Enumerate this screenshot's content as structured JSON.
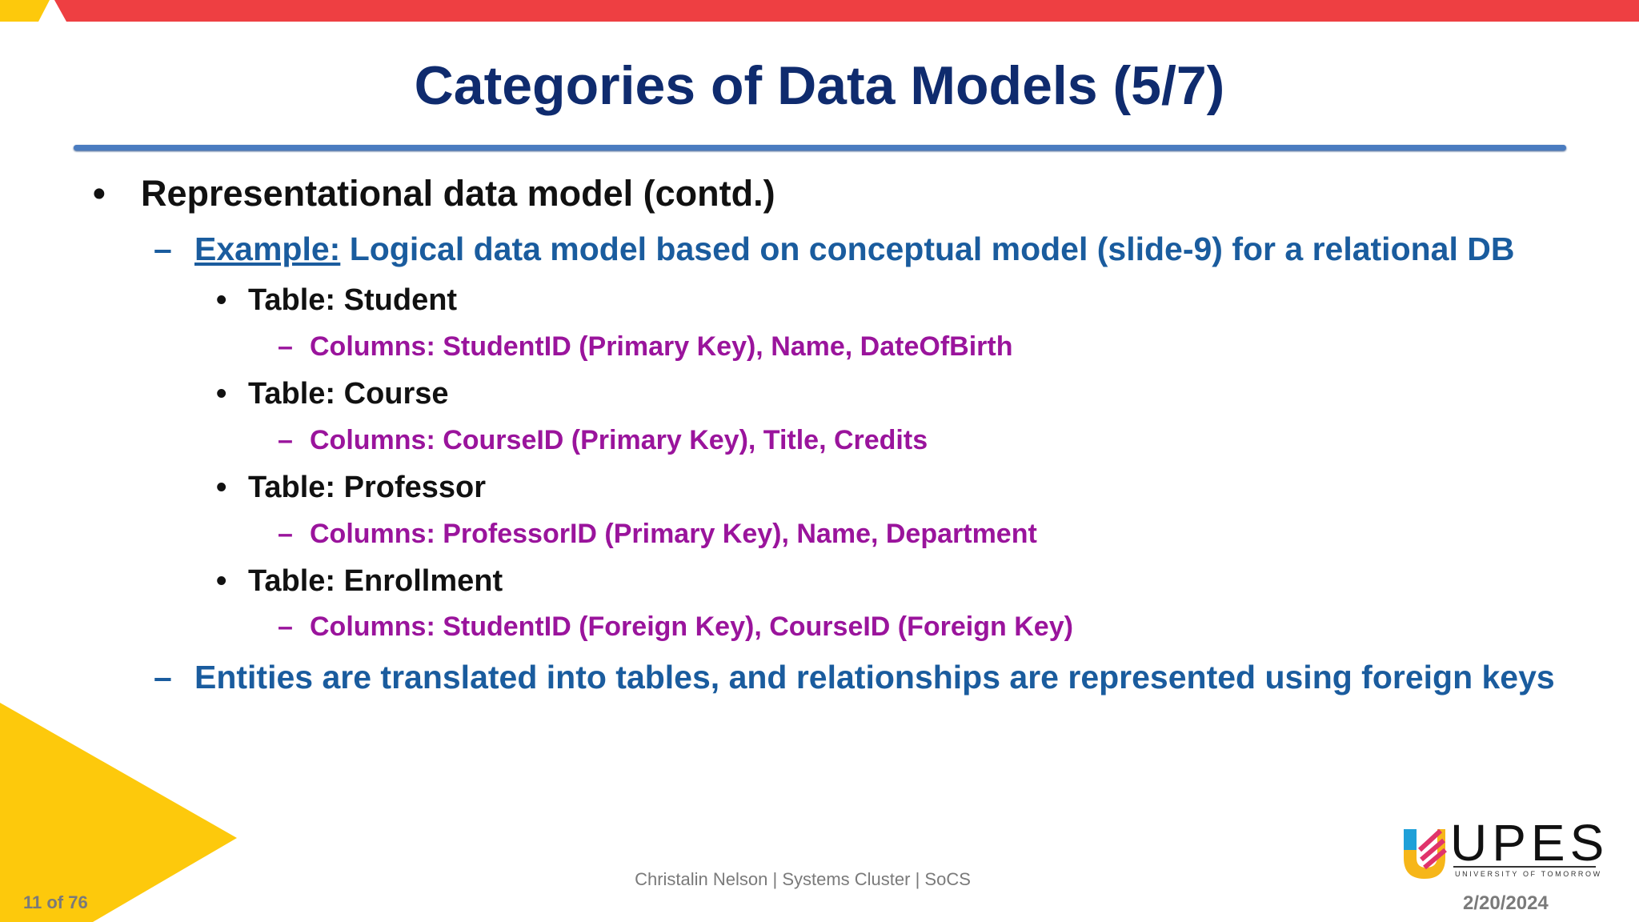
{
  "slide": {
    "title": "Categories of Data Models (5/7)",
    "bullet": "Representational data model (contd.)",
    "example_label": "Example:",
    "example_text": " Logical data model based on conceptual model (slide-9) for a relational DB",
    "tables": [
      {
        "label": "Table: Student",
        "columns": "Columns: StudentID (Primary Key), Name, DateOfBirth"
      },
      {
        "label": "Table: Course",
        "columns": "Columns: CourseID (Primary Key), Title, Credits"
      },
      {
        "label": "Table: Professor",
        "columns": "Columns: ProfessorID (Primary Key), Name, Department"
      },
      {
        "label": "Table: Enrollment",
        "columns": "Columns: StudentID (Foreign Key), CourseID (Foreign Key)"
      }
    ],
    "summary": "Entities are translated into tables, and relationships are represented using foreign keys"
  },
  "footer": {
    "author": "Christalin Nelson | Systems Cluster | SoCS",
    "page": "11 of 76",
    "date": "2/20/2024"
  },
  "logo": {
    "name": "UPES",
    "tagline": "UNIVERSITY OF TOMORROW"
  },
  "colors": {
    "title": "#0f2b6e",
    "sub": "#1a5c9e",
    "columns": "#9a149c",
    "red": "#ee3f42",
    "yellow": "#fdc90c"
  }
}
